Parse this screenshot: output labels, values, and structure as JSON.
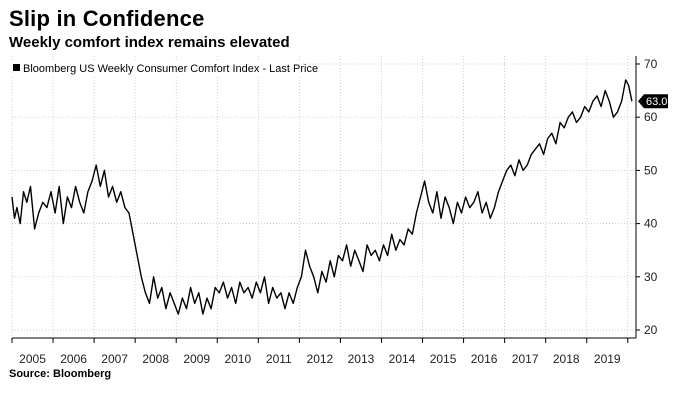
{
  "title": "Slip in Confidence",
  "subtitle": "Weekly comfort index remains elevated",
  "source": "Source: Bloomberg",
  "chart_data": {
    "type": "line",
    "title": "Slip in Confidence",
    "subtitle": "Weekly comfort index remains elevated",
    "xlabel": "",
    "ylabel": "",
    "xlim": [
      2005.0,
      2020.2
    ],
    "ylim": [
      18.5,
      71.5
    ],
    "y_axis_position": "right",
    "grid": true,
    "legend_position": "top-left",
    "x_ticks": [
      2005,
      2006,
      2007,
      2008,
      2009,
      2010,
      2011,
      2012,
      2013,
      2014,
      2015,
      2016,
      2017,
      2018,
      2019
    ],
    "y_ticks": [
      20,
      30,
      40,
      50,
      60,
      70
    ],
    "last_price_label": "63.0",
    "series": [
      {
        "name": "Bloomberg US Weekly Consumer Comfort Index - Last Price",
        "color": "#000000",
        "x": [
          2005.0,
          2005.06,
          2005.12,
          2005.2,
          2005.28,
          2005.36,
          2005.45,
          2005.55,
          2005.65,
          2005.75,
          2005.85,
          2005.95,
          2006.05,
          2006.15,
          2006.25,
          2006.35,
          2006.45,
          2006.55,
          2006.65,
          2006.75,
          2006.85,
          2006.95,
          2007.05,
          2007.15,
          2007.25,
          2007.35,
          2007.45,
          2007.55,
          2007.65,
          2007.75,
          2007.85,
          2007.95,
          2008.05,
          2008.15,
          2008.25,
          2008.35,
          2008.45,
          2008.55,
          2008.65,
          2008.75,
          2008.85,
          2008.95,
          2009.05,
          2009.15,
          2009.25,
          2009.35,
          2009.45,
          2009.55,
          2009.65,
          2009.75,
          2009.85,
          2009.95,
          2010.05,
          2010.15,
          2010.25,
          2010.35,
          2010.45,
          2010.55,
          2010.65,
          2010.75,
          2010.85,
          2010.95,
          2011.05,
          2011.15,
          2011.25,
          2011.35,
          2011.45,
          2011.55,
          2011.65,
          2011.75,
          2011.85,
          2011.95,
          2012.05,
          2012.15,
          2012.25,
          2012.35,
          2012.45,
          2012.55,
          2012.65,
          2012.75,
          2012.85,
          2012.95,
          2013.05,
          2013.15,
          2013.25,
          2013.35,
          2013.45,
          2013.55,
          2013.65,
          2013.75,
          2013.85,
          2013.95,
          2014.05,
          2014.15,
          2014.25,
          2014.35,
          2014.45,
          2014.55,
          2014.65,
          2014.75,
          2014.85,
          2014.95,
          2015.05,
          2015.15,
          2015.25,
          2015.35,
          2015.45,
          2015.55,
          2015.65,
          2015.75,
          2015.85,
          2015.95,
          2016.05,
          2016.15,
          2016.25,
          2016.35,
          2016.45,
          2016.55,
          2016.65,
          2016.75,
          2016.85,
          2016.95,
          2017.05,
          2017.15,
          2017.25,
          2017.35,
          2017.45,
          2017.55,
          2017.65,
          2017.75,
          2017.85,
          2017.95,
          2018.05,
          2018.15,
          2018.25,
          2018.35,
          2018.45,
          2018.55,
          2018.65,
          2018.75,
          2018.85,
          2018.95,
          2019.05,
          2019.15,
          2019.25,
          2019.35,
          2019.45,
          2019.55,
          2019.65,
          2019.75,
          2019.85,
          2019.95,
          2020.02,
          2020.1
        ],
        "y": [
          45,
          41,
          43,
          40,
          46,
          44,
          47,
          39,
          42,
          44,
          43,
          46,
          42,
          47,
          40,
          45,
          43,
          47,
          44,
          42,
          46,
          48,
          51,
          47,
          50,
          45,
          47,
          44,
          46,
          43,
          42,
          38,
          34,
          30,
          27,
          25,
          30,
          26,
          28,
          24,
          27,
          25,
          23,
          26,
          24,
          28,
          25,
          27,
          23,
          26,
          24,
          28,
          27,
          29,
          26,
          28,
          25,
          29,
          27,
          28,
          26,
          29,
          27,
          30,
          25,
          28,
          26,
          27,
          24,
          27,
          25,
          28,
          30,
          35,
          32,
          30,
          27,
          31,
          29,
          33,
          30,
          34,
          33,
          36,
          32,
          35,
          33,
          31,
          36,
          34,
          35,
          33,
          36,
          34,
          38,
          35,
          37,
          36,
          39,
          38,
          42,
          45,
          48,
          44,
          42,
          46,
          41,
          45,
          43,
          40,
          44,
          42,
          45,
          43,
          44,
          46,
          42,
          44,
          41,
          43,
          46,
          48,
          50,
          51,
          49,
          52,
          50,
          51,
          53,
          54,
          55,
          53,
          56,
          57,
          55,
          59,
          58,
          60,
          61,
          59,
          60,
          62,
          61,
          63,
          64,
          62,
          65,
          63,
          60,
          61,
          63,
          67,
          66,
          63
        ]
      }
    ]
  }
}
